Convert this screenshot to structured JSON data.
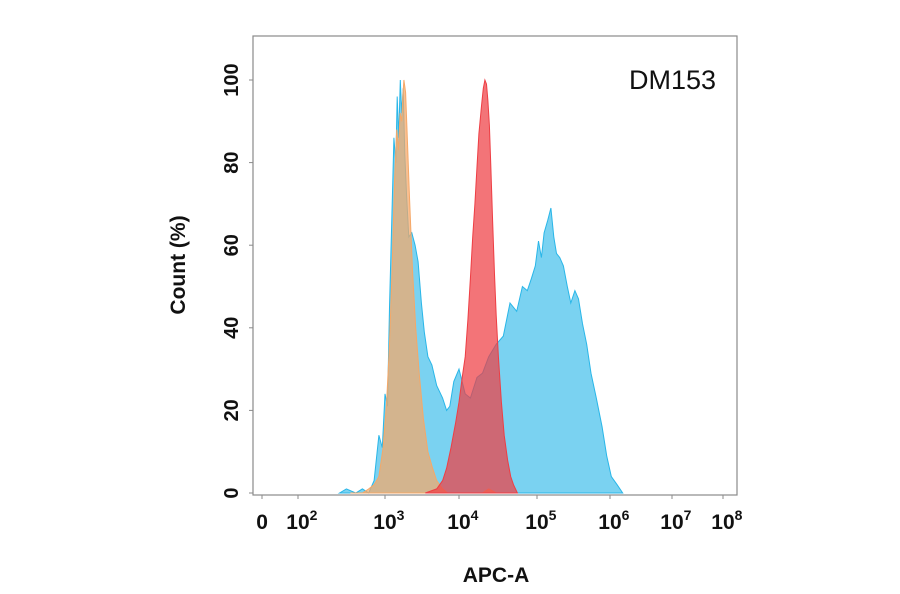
{
  "chart_data": {
    "type": "area",
    "title": "",
    "annotation": "DM153",
    "xlabel": "APC-A",
    "ylabel": "Count  (%)",
    "x_scale": "biexponential",
    "x_ticks": [
      {
        "value": 0,
        "base": "0",
        "exp": ""
      },
      {
        "value": 100,
        "base": "10",
        "exp": "2"
      },
      {
        "value": 1000,
        "base": "10",
        "exp": "3"
      },
      {
        "value": 10000,
        "base": "10",
        "exp": "4"
      },
      {
        "value": 100000,
        "base": "10",
        "exp": "5"
      },
      {
        "value": 1000000,
        "base": "10",
        "exp": "6"
      },
      {
        "value": 10000000,
        "base": "10",
        "exp": "7"
      },
      {
        "value": 100000000,
        "base": "10",
        "exp": "8"
      }
    ],
    "y_ticks": [
      0,
      20,
      40,
      60,
      80,
      100
    ],
    "ylim": [
      0,
      110
    ],
    "grid": false,
    "legend": "none",
    "series": [
      {
        "color": "#29b6e8",
        "fill_opacity": 0.62,
        "points": [
          [
            300,
            0
          ],
          [
            360,
            1
          ],
          [
            460,
            0
          ],
          [
            550,
            1
          ],
          [
            650,
            0
          ],
          [
            750,
            3
          ],
          [
            850,
            14
          ],
          [
            930,
            11
          ],
          [
            1000,
            24
          ],
          [
            1080,
            21
          ],
          [
            1150,
            45
          ],
          [
            1250,
            70
          ],
          [
            1320,
            86
          ],
          [
            1400,
            80
          ],
          [
            1460,
            96
          ],
          [
            1530,
            86
          ],
          [
            1610,
            100
          ],
          [
            1680,
            92
          ],
          [
            1760,
            98
          ],
          [
            1850,
            82
          ],
          [
            1960,
            72
          ],
          [
            2100,
            62
          ],
          [
            2300,
            63
          ],
          [
            2550,
            60
          ],
          [
            2800,
            56
          ],
          [
            3100,
            46
          ],
          [
            3400,
            39
          ],
          [
            3800,
            33
          ],
          [
            4300,
            31
          ],
          [
            5000,
            26
          ],
          [
            6000,
            23
          ],
          [
            6800,
            20
          ],
          [
            7500,
            21
          ],
          [
            8500,
            27
          ],
          [
            10000,
            30
          ],
          [
            12000,
            24
          ],
          [
            14000,
            23
          ],
          [
            17000,
            28
          ],
          [
            20000,
            29
          ],
          [
            24000,
            33
          ],
          [
            30000,
            36
          ],
          [
            37000,
            38
          ],
          [
            45000,
            46
          ],
          [
            55000,
            44
          ],
          [
            65000,
            50
          ],
          [
            75000,
            49
          ],
          [
            85000,
            52
          ],
          [
            95000,
            55
          ],
          [
            105000,
            61
          ],
          [
            115000,
            57
          ],
          [
            125000,
            63
          ],
          [
            140000,
            66
          ],
          [
            155000,
            69
          ],
          [
            170000,
            62
          ],
          [
            185000,
            58
          ],
          [
            205000,
            57
          ],
          [
            230000,
            55
          ],
          [
            260000,
            50
          ],
          [
            290000,
            46
          ],
          [
            330000,
            49
          ],
          [
            370000,
            47
          ],
          [
            420000,
            41
          ],
          [
            480000,
            36
          ],
          [
            550000,
            29
          ],
          [
            650000,
            23
          ],
          [
            780000,
            16
          ],
          [
            900000,
            9
          ],
          [
            1050000,
            4
          ],
          [
            1300000,
            2
          ],
          [
            1600000,
            0
          ]
        ]
      },
      {
        "color": "#f5a868",
        "fill_opacity": 0.72,
        "points": [
          [
            400,
            0
          ],
          [
            550,
            0
          ],
          [
            650,
            1
          ],
          [
            750,
            2
          ],
          [
            850,
            4
          ],
          [
            950,
            11
          ],
          [
            1050,
            22
          ],
          [
            1150,
            36
          ],
          [
            1250,
            55
          ],
          [
            1350,
            76
          ],
          [
            1440,
            88
          ],
          [
            1520,
            83
          ],
          [
            1600,
            92
          ],
          [
            1680,
            90
          ],
          [
            1740,
            96
          ],
          [
            1800,
            100
          ],
          [
            1900,
            97
          ],
          [
            2000,
            86
          ],
          [
            2150,
            71
          ],
          [
            2350,
            54
          ],
          [
            2600,
            40
          ],
          [
            2900,
            29
          ],
          [
            3300,
            18
          ],
          [
            3800,
            10
          ],
          [
            4400,
            6
          ],
          [
            5000,
            3
          ],
          [
            6000,
            1
          ],
          [
            7000,
            0
          ],
          [
            20000,
            0
          ],
          [
            24000,
            1
          ],
          [
            30000,
            0
          ]
        ]
      },
      {
        "color": "#ee3e44",
        "fill_opacity": 0.72,
        "points": [
          [
            3500,
            0
          ],
          [
            5000,
            1
          ],
          [
            6000,
            3
          ],
          [
            6800,
            6
          ],
          [
            7800,
            11
          ],
          [
            9000,
            17
          ],
          [
            10000,
            22
          ],
          [
            11000,
            28
          ],
          [
            12000,
            33
          ],
          [
            13000,
            42
          ],
          [
            14000,
            52
          ],
          [
            15000,
            62
          ],
          [
            16000,
            70
          ],
          [
            17000,
            79
          ],
          [
            18000,
            87
          ],
          [
            19500,
            94
          ],
          [
            20500,
            98
          ],
          [
            21500,
            100
          ],
          [
            22500,
            99
          ],
          [
            23500,
            95
          ],
          [
            24500,
            89
          ],
          [
            25500,
            80
          ],
          [
            27000,
            66
          ],
          [
            28500,
            53
          ],
          [
            30000,
            43
          ],
          [
            32000,
            33
          ],
          [
            35000,
            22
          ],
          [
            38000,
            14
          ],
          [
            42000,
            8
          ],
          [
            46000,
            4
          ],
          [
            50000,
            2
          ],
          [
            56000,
            0
          ]
        ]
      }
    ]
  }
}
